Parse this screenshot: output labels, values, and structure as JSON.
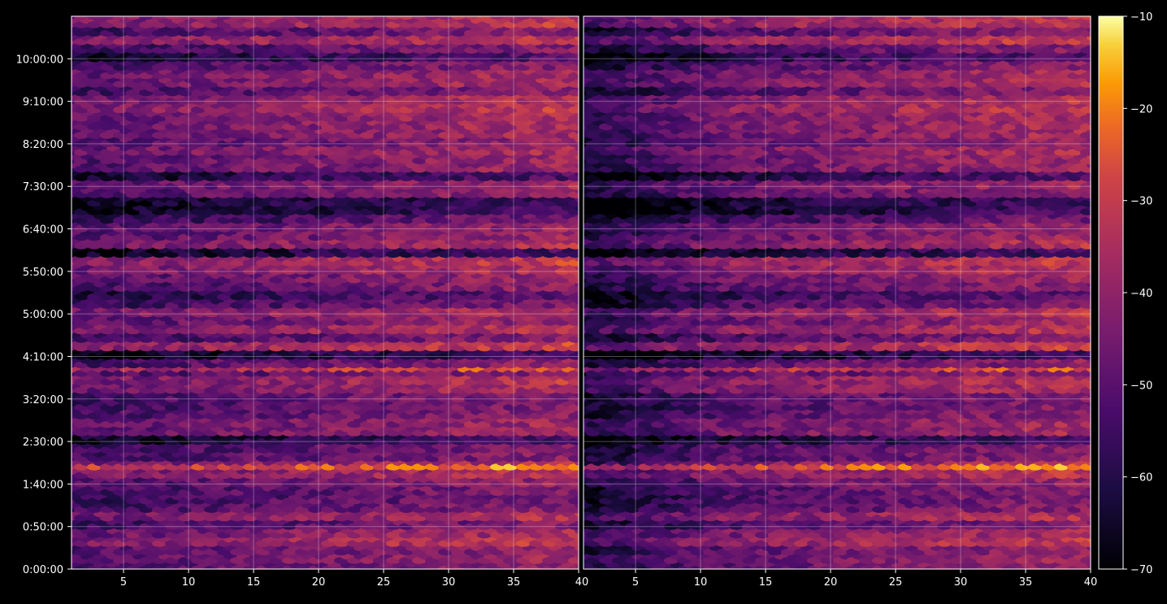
{
  "chart_data": [
    {
      "type": "heatmap",
      "title": "",
      "xlabel": "",
      "ylabel": "",
      "x_ticks": [
        5,
        10,
        15,
        20,
        25,
        30,
        35
      ],
      "x_edge_label": "40",
      "xlim": [
        1,
        40
      ],
      "y_tick_labels": [
        "0:00:00",
        "0:50:00",
        "1:40:00",
        "2:30:00",
        "3:20:00",
        "4:10:00",
        "5:00:00",
        "5:50:00",
        "6:40:00",
        "7:30:00",
        "8:20:00",
        "9:10:00",
        "10:00:00"
      ],
      "y_range_minutes": [
        0,
        650
      ],
      "grid": true,
      "colormap": "inferno",
      "value_summary": {
        "typical_range": [
          -55,
          -25
        ],
        "hot_rows_minutes": [
          120,
          235
        ]
      }
    },
    {
      "type": "heatmap",
      "title": "",
      "xlabel": "",
      "ylabel": "",
      "x_ticks": [
        5,
        10,
        15,
        20,
        25,
        30,
        35,
        40
      ],
      "xlim": [
        1,
        40
      ],
      "y_range_minutes": [
        0,
        650
      ],
      "grid": true,
      "colormap": "inferno",
      "value_summary": {
        "typical_range": [
          -60,
          -25
        ],
        "hot_rows_minutes": [
          120,
          235
        ]
      }
    }
  ],
  "colorbar": {
    "ticks": [
      -10,
      -20,
      -30,
      -40,
      -50,
      -60,
      -70
    ],
    "tick_labels": [
      "−10",
      "−20",
      "−30",
      "−40",
      "−50",
      "−60",
      "−70"
    ],
    "range": [
      -70,
      -10
    ],
    "position": "right"
  },
  "colors": {
    "background": "#000000",
    "grid": "#ffffff",
    "axis": "#ffffff"
  }
}
